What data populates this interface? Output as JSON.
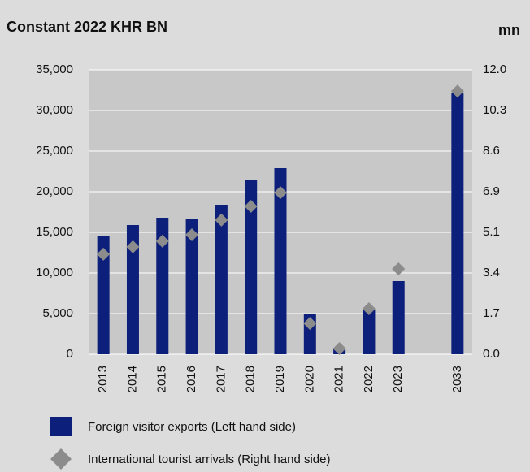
{
  "chart_data": {
    "type": "bar",
    "title": "Constant 2022 KHR BN",
    "y2_label": "mn",
    "categories": [
      "2013",
      "2014",
      "2015",
      "2016",
      "2017",
      "2018",
      "2019",
      "2020",
      "2021",
      "2022",
      "2023",
      null,
      "2033"
    ],
    "series": [
      {
        "name": "Foreign visitor exports (Left hand side)",
        "color": "#0c1f7a",
        "type": "bar",
        "values": [
          14500,
          15900,
          16800,
          16700,
          18400,
          21500,
          22900,
          4900,
          600,
          5500,
          9000,
          null,
          32200
        ]
      },
      {
        "name": "International tourist arrivals (Right hand side)",
        "color": "#8c8c8c",
        "type": "diamond",
        "axis": "y2",
        "values": [
          4.22,
          4.53,
          4.77,
          5.04,
          5.66,
          6.24,
          6.82,
          1.3,
          0.24,
          1.92,
          3.6,
          null,
          11.1
        ]
      }
    ],
    "ylim": [
      0,
      35000
    ],
    "yticks": [
      {
        "value": 0,
        "label": "0"
      },
      {
        "value": 5000,
        "label": "5,000"
      },
      {
        "value": 10000,
        "label": "10,000"
      },
      {
        "value": 15000,
        "label": "15,000"
      },
      {
        "value": 20000,
        "label": "20,000"
      },
      {
        "value": 25000,
        "label": "25,000"
      },
      {
        "value": 30000,
        "label": "30,000"
      },
      {
        "value": 35000,
        "label": "35,000"
      }
    ],
    "y2lim": [
      0,
      12
    ],
    "y2ticks": [
      {
        "value": 0,
        "label": "0.0"
      },
      {
        "value": 1.7142857,
        "label": "1.7"
      },
      {
        "value": 3.4285714,
        "label": "3.4"
      },
      {
        "value": 5.1428571,
        "label": "5.1"
      },
      {
        "value": 6.8571429,
        "label": "6.9"
      },
      {
        "value": 8.5714286,
        "label": "8.6"
      },
      {
        "value": 10.2857143,
        "label": "10.3"
      },
      {
        "value": 12,
        "label": "12.0"
      }
    ],
    "grid": true
  }
}
